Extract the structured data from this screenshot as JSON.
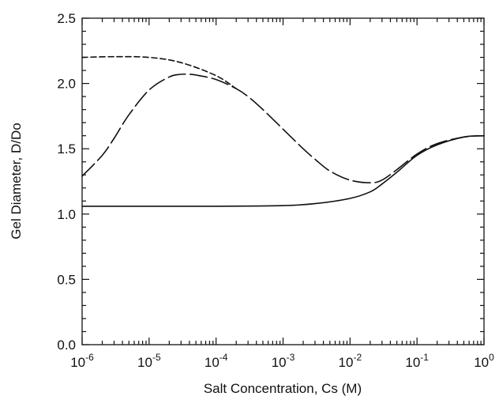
{
  "chart_data": {
    "type": "line",
    "xlabel": "Salt Concentration, Cs (M)",
    "ylabel": "Gel Diameter, D/Do",
    "x_scale": "log",
    "xlim": [
      1e-06,
      1
    ],
    "ylim": [
      0,
      2.5
    ],
    "x_ticks": [
      {
        "base": "10",
        "exp": "-6"
      },
      {
        "base": "10",
        "exp": "-5"
      },
      {
        "base": "10",
        "exp": "-4"
      },
      {
        "base": "10",
        "exp": "-3"
      },
      {
        "base": "10",
        "exp": "-2"
      },
      {
        "base": "10",
        "exp": "-1"
      },
      {
        "base": "10",
        "exp": "0"
      }
    ],
    "y_ticks": [
      "0.0",
      "0.5",
      "1.0",
      "1.5",
      "2.0",
      "2.5"
    ],
    "grid": false,
    "series": [
      {
        "style": "solid",
        "x": [
          1e-06,
          1e-05,
          0.0001,
          0.001,
          0.003,
          0.01,
          0.02,
          0.03,
          0.05,
          0.1,
          0.2,
          0.5,
          1
        ],
        "y": [
          1.06,
          1.06,
          1.06,
          1.065,
          1.08,
          1.12,
          1.17,
          1.23,
          1.32,
          1.45,
          1.53,
          1.59,
          1.6
        ]
      },
      {
        "style": "short-dash",
        "x": [
          1e-06,
          3e-06,
          1e-05,
          3e-05,
          0.0001,
          0.0002
        ],
        "y": [
          2.2,
          2.205,
          2.2,
          2.16,
          2.06,
          1.96
        ]
      },
      {
        "style": "long-dash",
        "x": [
          1e-06,
          2e-06,
          3e-06,
          5e-06,
          1e-05,
          2e-05,
          3e-05,
          4e-05,
          5e-05,
          0.0001,
          0.0002,
          0.0003,
          0.0005,
          0.001,
          0.002,
          0.003,
          0.005,
          0.01,
          0.02,
          0.03,
          0.05,
          0.1,
          0.2,
          0.5,
          1
        ],
        "y": [
          1.29,
          1.45,
          1.58,
          1.76,
          1.95,
          2.05,
          2.07,
          2.07,
          2.065,
          2.03,
          1.96,
          1.9,
          1.8,
          1.65,
          1.5,
          1.42,
          1.33,
          1.26,
          1.24,
          1.26,
          1.34,
          1.46,
          1.54,
          1.59,
          1.6
        ]
      }
    ]
  }
}
